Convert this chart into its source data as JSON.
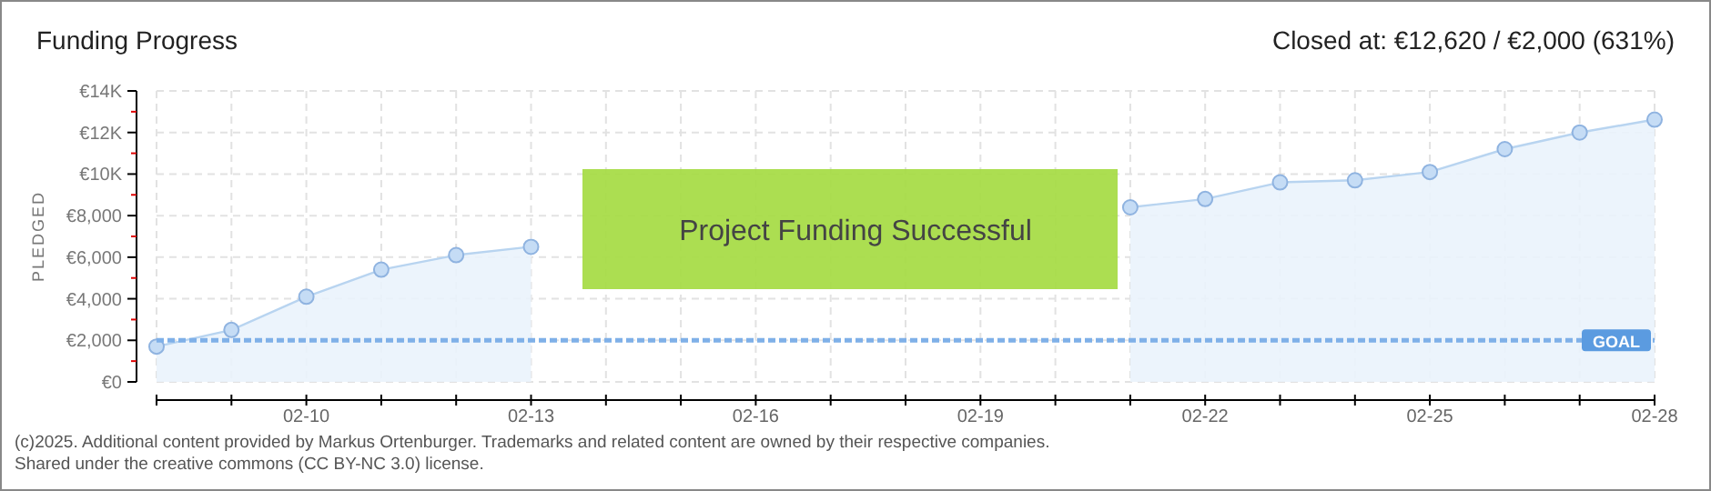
{
  "chart_data": {
    "type": "area",
    "title": "Funding Progress",
    "ylabel": "PLEDGED",
    "annotations": [
      "Closed at:  €12,620 /  €2,000 (631%)",
      "Project Funding Successful",
      "(c)2025. Additional content provided by Markus Ortenburger. Trademarks and related content are owned by their respective companies.",
      "Shared under the creative commons (CC BY-NC 3.0) license."
    ],
    "x": [
      "--02-08",
      "--02-09",
      "--02-10",
      "--02-11",
      "--02-12",
      "--02-13",
      "--02-14",
      "--02-15",
      "--02-16",
      "--02-17",
      "--02-18",
      "--02-19",
      "--02-20",
      "--02-21",
      "--02-22",
      "--02-23",
      "--02-24",
      "--02-25",
      "--02-26",
      "--02-27",
      "--02-28"
    ],
    "series": [
      {
        "color": "#b8d4f0",
        "values": [
          1700,
          2500,
          4100,
          5400,
          6100,
          6500,
          null,
          null,
          null,
          null,
          null,
          null,
          null,
          8400,
          8800,
          9600,
          9700,
          10100,
          11200,
          12000,
          12620
        ]
      }
    ],
    "xlim": [
      "--02-08",
      "--02-28"
    ],
    "xticks": [
      {
        "value": "--02-08",
        "label": null
      },
      {
        "value": "--02-09",
        "label": null
      },
      {
        "value": "--02-10",
        "label": "02-10"
      },
      {
        "value": "--02-11",
        "label": null
      },
      {
        "value": "--02-12",
        "label": null
      },
      {
        "value": "--02-13",
        "label": "02-13"
      },
      {
        "value": "--02-14",
        "label": null
      },
      {
        "value": "--02-15",
        "label": null
      },
      {
        "value": "--02-16",
        "label": "02-16"
      },
      {
        "value": "--02-17",
        "label": null
      },
      {
        "value": "--02-18",
        "label": null
      },
      {
        "value": "--02-19",
        "label": "02-19"
      },
      {
        "value": "--02-20",
        "label": null
      },
      {
        "value": "--02-21",
        "label": null
      },
      {
        "value": "--02-22",
        "label": "02-22"
      },
      {
        "value": "--02-23",
        "label": null
      },
      {
        "value": "--02-24",
        "label": null
      },
      {
        "value": "--02-25",
        "label": "02-25"
      },
      {
        "value": "--02-26",
        "label": null
      },
      {
        "value": "--02-27",
        "label": null
      },
      {
        "value": "--02-28",
        "label": "02-28"
      }
    ],
    "ylim": [
      0,
      14000
    ],
    "yticks": [
      {
        "value": 0,
        "label": "€0"
      },
      {
        "value": 1000,
        "label": null
      },
      {
        "value": 2000,
        "label": "€2,000"
      },
      {
        "value": 3000,
        "label": null
      },
      {
        "value": 4000,
        "label": "€4,000"
      },
      {
        "value": 5000,
        "label": null
      },
      {
        "value": 6000,
        "label": "€6,000"
      },
      {
        "value": 7000,
        "label": null
      },
      {
        "value": 8000,
        "label": "€8,000"
      },
      {
        "value": 9000,
        "label": null
      },
      {
        "value": 10000,
        "label": "€10K"
      },
      {
        "value": 11000,
        "label": null
      },
      {
        "value": 12000,
        "label": "€12K"
      },
      {
        "value": 13000,
        "label": null
      },
      {
        "value": 14000,
        "label": "€14K"
      }
    ],
    "grid": true,
    "marker": "circle",
    "line_style": "solid",
    "ref_lines": [
      {
        "axis": "y",
        "value": 2000,
        "label": "GOAL",
        "color": "#7fb0e8",
        "line_style": "dashed"
      }
    ]
  }
}
